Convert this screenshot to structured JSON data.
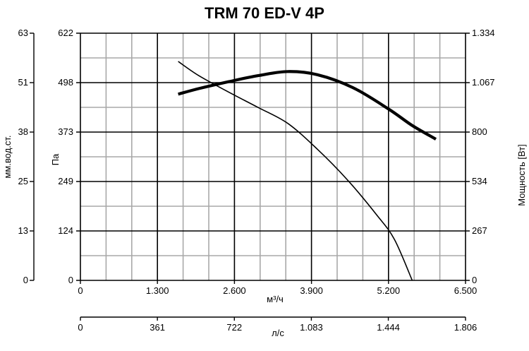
{
  "chart_data": {
    "type": "line",
    "title": "TRM 70 ED-V 4P",
    "x_primary": {
      "label": "м³/ч",
      "ticks": [
        0,
        1300,
        2600,
        3900,
        5200,
        6500
      ],
      "tick_labels": [
        "0",
        "1.300",
        "2.600",
        "3.900",
        "5.200",
        "6.500"
      ],
      "range": [
        0,
        6500
      ]
    },
    "x_secondary": {
      "label": "л/с",
      "ticks": [
        0,
        361,
        722,
        1083,
        1444,
        1806
      ],
      "tick_labels": [
        "0",
        "361",
        "722",
        "1.083",
        "1.444",
        "1.806"
      ],
      "range": [
        0,
        1806
      ]
    },
    "y_left_outer": {
      "label": "мм.вод.ст.",
      "ticks": [
        0,
        13,
        25,
        38,
        51,
        63
      ],
      "tick_labels": [
        "0",
        "13",
        "25",
        "38",
        "51",
        "63"
      ]
    },
    "y_left": {
      "label": "Па",
      "ticks": [
        0,
        124,
        249,
        373,
        498,
        622
      ],
      "tick_labels": [
        "0",
        "124",
        "249",
        "373",
        "498",
        "622"
      ],
      "range": [
        0,
        622
      ]
    },
    "y_right": {
      "label": "Мощность [Вт]",
      "ticks": [
        0,
        267,
        534,
        800,
        1067,
        1334
      ],
      "tick_labels": [
        "0",
        "267",
        "534",
        "800",
        "1.067",
        "1.334"
      ],
      "range": [
        0,
        1334
      ]
    },
    "grid": true,
    "series": [
      {
        "axis": "y_left",
        "color": "#000000",
        "style": "thin",
        "x": [
          1650,
          2000,
          2500,
          3000,
          3500,
          4000,
          4500,
          5000,
          5300,
          5600
        ],
        "y": [
          551,
          515,
          474,
          435,
          395,
          330,
          254,
          165,
          103,
          0
        ]
      },
      {
        "axis": "y_right",
        "color": "#000000",
        "style": "thick",
        "x": [
          1650,
          2000,
          2500,
          3000,
          3500,
          4000,
          4600,
          5200,
          5600,
          6000
        ],
        "y": [
          1005,
          1035,
          1072,
          1105,
          1127,
          1110,
          1040,
          925,
          836,
          762
        ]
      }
    ]
  }
}
